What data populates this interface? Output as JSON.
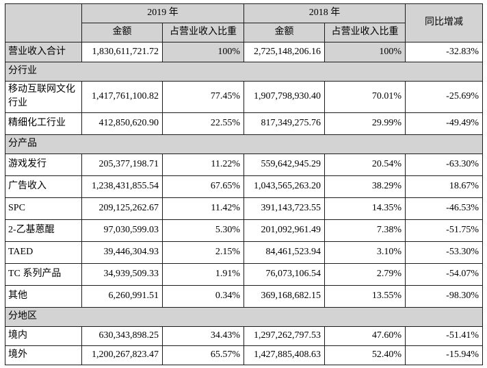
{
  "colors": {
    "cell_fill_gray": "#d3d3d3",
    "cell_fill_white": "#ffffff",
    "border": "#1a1a1a",
    "text": "#000000"
  },
  "table": {
    "header": {
      "year_2019": "2019 年",
      "year_2018": "2018 年",
      "amount": "金额",
      "ratio": "占营业收入比重",
      "yoy": "同比增减"
    },
    "rows": [
      {
        "type": "total",
        "label": "营业收入合计",
        "values": [
          "1,830,611,721.72",
          "100%",
          "2,725,148,206.16",
          "100%",
          "-32.83%"
        ]
      },
      {
        "type": "section",
        "label": "分行业"
      },
      {
        "type": "data",
        "label": "移动互联网文化行业",
        "values": [
          "1,417,761,100.82",
          "77.45%",
          "1,907,798,930.40",
          "70.01%",
          "-25.69%"
        ]
      },
      {
        "type": "data",
        "label": "精细化工行业",
        "values": [
          "412,850,620.90",
          "22.55%",
          "817,349,275.76",
          "29.99%",
          "-49.49%"
        ]
      },
      {
        "type": "section",
        "label": "分产品"
      },
      {
        "type": "data",
        "label": "游戏发行",
        "values": [
          "205,377,198.71",
          "11.22%",
          "559,642,945.29",
          "20.54%",
          "-63.30%"
        ]
      },
      {
        "type": "data",
        "label": "广告收入",
        "values": [
          "1,238,431,855.54",
          "67.65%",
          "1,043,565,263.20",
          "38.29%",
          "18.67%"
        ]
      },
      {
        "type": "data",
        "label": "SPC",
        "values": [
          "209,125,262.67",
          "11.42%",
          "391,143,723.55",
          "14.35%",
          "-46.53%"
        ]
      },
      {
        "type": "data",
        "label": "2-乙基蒽醌",
        "values": [
          "97,030,599.03",
          "5.30%",
          "201,092,961.49",
          "7.38%",
          "-51.75%"
        ]
      },
      {
        "type": "data",
        "label": "TAED",
        "values": [
          "39,446,304.93",
          "2.15%",
          "84,461,523.94",
          "3.10%",
          "-53.30%"
        ]
      },
      {
        "type": "data",
        "label": "TC 系列产品",
        "values": [
          "34,939,509.33",
          "1.91%",
          "76,073,106.54",
          "2.79%",
          "-54.07%"
        ]
      },
      {
        "type": "data",
        "label": "其他",
        "values": [
          "6,260,991.51",
          "0.34%",
          "369,168,682.15",
          "13.55%",
          "-98.30%"
        ]
      },
      {
        "type": "section",
        "label": "分地区"
      },
      {
        "type": "data-sm",
        "label": "境内",
        "values": [
          "630,343,898.25",
          "34.43%",
          "1,297,262,797.53",
          "47.60%",
          "-51.41%"
        ]
      },
      {
        "type": "data-sm",
        "label": "境外",
        "values": [
          "1,200,267,823.47",
          "65.57%",
          "1,427,885,408.63",
          "52.40%",
          "-15.94%"
        ]
      }
    ]
  }
}
